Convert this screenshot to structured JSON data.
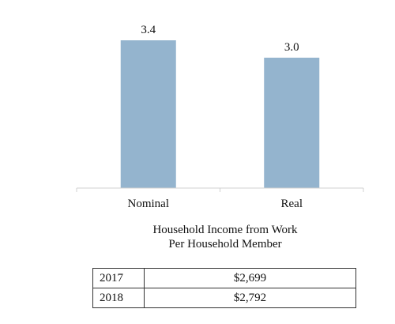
{
  "chart_data": {
    "type": "bar",
    "categories": [
      "Nominal",
      "Real"
    ],
    "values": [
      3.4,
      3.0
    ],
    "data_labels": [
      "3.4",
      "3.0"
    ],
    "title": "Household Income from Work\nPer Household Member",
    "xlabel": "",
    "ylabel": "",
    "ylim": [
      0,
      3.8
    ],
    "bar_color": "#94b4ce",
    "grid": false,
    "legend": "none"
  },
  "caption": {
    "line1": "Household Income from Work",
    "line2": "Per Household Member"
  },
  "table": {
    "rows": [
      {
        "year": "2017",
        "value": "$2,699"
      },
      {
        "year": "2018",
        "value": "$2,792"
      }
    ]
  }
}
